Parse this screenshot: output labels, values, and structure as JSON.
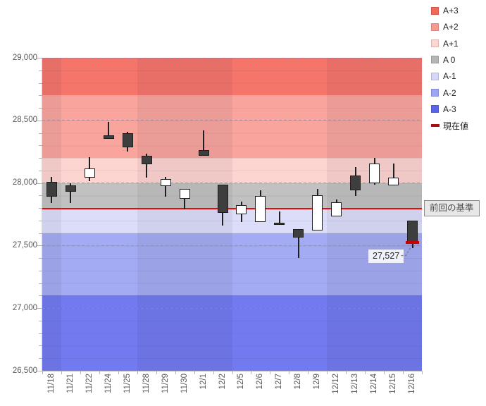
{
  "legend": {
    "items": [
      {
        "label": "A+3",
        "color": "#f4675c",
        "marker": "square"
      },
      {
        "label": "A+2",
        "color": "#f89a92",
        "marker": "square"
      },
      {
        "label": "A+1",
        "color": "#fcd6d2",
        "marker": "square"
      },
      {
        "label": "A 0",
        "color": "#b5b5b5",
        "marker": "square"
      },
      {
        "label": "A-1",
        "color": "#d5d7f7",
        "marker": "square"
      },
      {
        "label": "A-2",
        "color": "#9ca5f2",
        "marker": "square"
      },
      {
        "label": "A-3",
        "color": "#5b64e8",
        "marker": "square"
      },
      {
        "label": "現在値",
        "color": "#a50f0f",
        "marker": "dash"
      }
    ]
  },
  "y_axis": {
    "min": 26500,
    "max": 29000,
    "major_step": 500,
    "minor_step": 100,
    "tick_labels": [
      "29,000",
      "28,500",
      "28,000",
      "27,500",
      "27,000",
      "26,500"
    ]
  },
  "chart_data": {
    "type": "candlestick",
    "title": "",
    "ylim": [
      26500,
      29000
    ],
    "grid": "dashed-major-horizontal",
    "x_labels": [
      "11/18",
      "11/21",
      "11/22",
      "11/24",
      "11/25",
      "11/28",
      "11/29",
      "11/30",
      "12/1",
      "12/2",
      "12/5",
      "12/6",
      "12/7",
      "12/8",
      "12/9",
      "12/12",
      "12/13",
      "12/14",
      "12/15",
      "12/16"
    ],
    "ohlc": [
      {
        "date": "11/18",
        "open": 28010,
        "high": 28050,
        "low": 27840,
        "close": 27890
      },
      {
        "date": "11/21",
        "open": 27980,
        "high": 28000,
        "low": 27840,
        "close": 27930
      },
      {
        "date": "11/22",
        "open": 28045,
        "high": 28205,
        "low": 28015,
        "close": 28115
      },
      {
        "date": "11/24",
        "open": 28380,
        "high": 28490,
        "low": 28350,
        "close": 28350
      },
      {
        "date": "11/25",
        "open": 28395,
        "high": 28410,
        "low": 28250,
        "close": 28285
      },
      {
        "date": "11/28",
        "open": 28215,
        "high": 28235,
        "low": 28040,
        "close": 28150
      },
      {
        "date": "11/29",
        "open": 27975,
        "high": 28050,
        "low": 27890,
        "close": 28030
      },
      {
        "date": "11/30",
        "open": 27875,
        "high": 27955,
        "low": 27790,
        "close": 27955
      },
      {
        "date": "12/1",
        "open": 28260,
        "high": 28420,
        "low": 28220,
        "close": 28220
      },
      {
        "date": "12/2",
        "open": 27985,
        "high": 27985,
        "low": 27660,
        "close": 27760
      },
      {
        "date": "12/5",
        "open": 27750,
        "high": 27850,
        "low": 27690,
        "close": 27825
      },
      {
        "date": "12/6",
        "open": 27690,
        "high": 27940,
        "low": 27690,
        "close": 27895
      },
      {
        "date": "12/7",
        "open": 27680,
        "high": 27775,
        "low": 27665,
        "close": 27665
      },
      {
        "date": "12/8",
        "open": 27630,
        "high": 27630,
        "low": 27400,
        "close": 27565
      },
      {
        "date": "12/9",
        "open": 27620,
        "high": 27950,
        "low": 27620,
        "close": 27900
      },
      {
        "date": "12/12",
        "open": 27735,
        "high": 27870,
        "low": 27735,
        "close": 27845
      },
      {
        "date": "12/13",
        "open": 28060,
        "high": 28130,
        "low": 27895,
        "close": 27940
      },
      {
        "date": "12/14",
        "open": 27995,
        "high": 28200,
        "low": 27985,
        "close": 28155
      },
      {
        "date": "12/15",
        "open": 27980,
        "high": 28155,
        "low": 27980,
        "close": 28045
      },
      {
        "date": "12/16",
        "open": 27700,
        "high": 27700,
        "low": 27480,
        "close": 27527
      }
    ],
    "candle_colors": {
      "up_fill": "#ffffff",
      "down_fill": "#3e3e3e",
      "border": "#1e1e1e"
    },
    "bands": [
      {
        "label": "A+3",
        "from": 28700,
        "to": 29000,
        "color": "#f5756b"
      },
      {
        "label": "A+2",
        "from": 28200,
        "to": 28700,
        "color": "#f9a49d"
      },
      {
        "label": "A+1",
        "from": 28000,
        "to": 28200,
        "color": "#fdd4d0"
      },
      {
        "label": "A 0",
        "from": 27800,
        "to": 28000,
        "color": "#c1c1c1"
      },
      {
        "label": "A-1",
        "from": 27600,
        "to": 27800,
        "color": "#dcdef9"
      },
      {
        "label": "A-2",
        "from": 27100,
        "to": 27600,
        "color": "#a3abf2"
      },
      {
        "label": "A-3",
        "from": 26500,
        "to": 27100,
        "color": "#727af0"
      }
    ],
    "week_shade_columns": [
      [
        0,
        0
      ],
      [
        5,
        9
      ],
      [
        15,
        19
      ]
    ],
    "baseline": {
      "value": 27795,
      "color": "#fe0000",
      "label": "前回の基準"
    },
    "current_value": {
      "value": 27527,
      "label": "27,527",
      "color": "#d10000"
    }
  }
}
